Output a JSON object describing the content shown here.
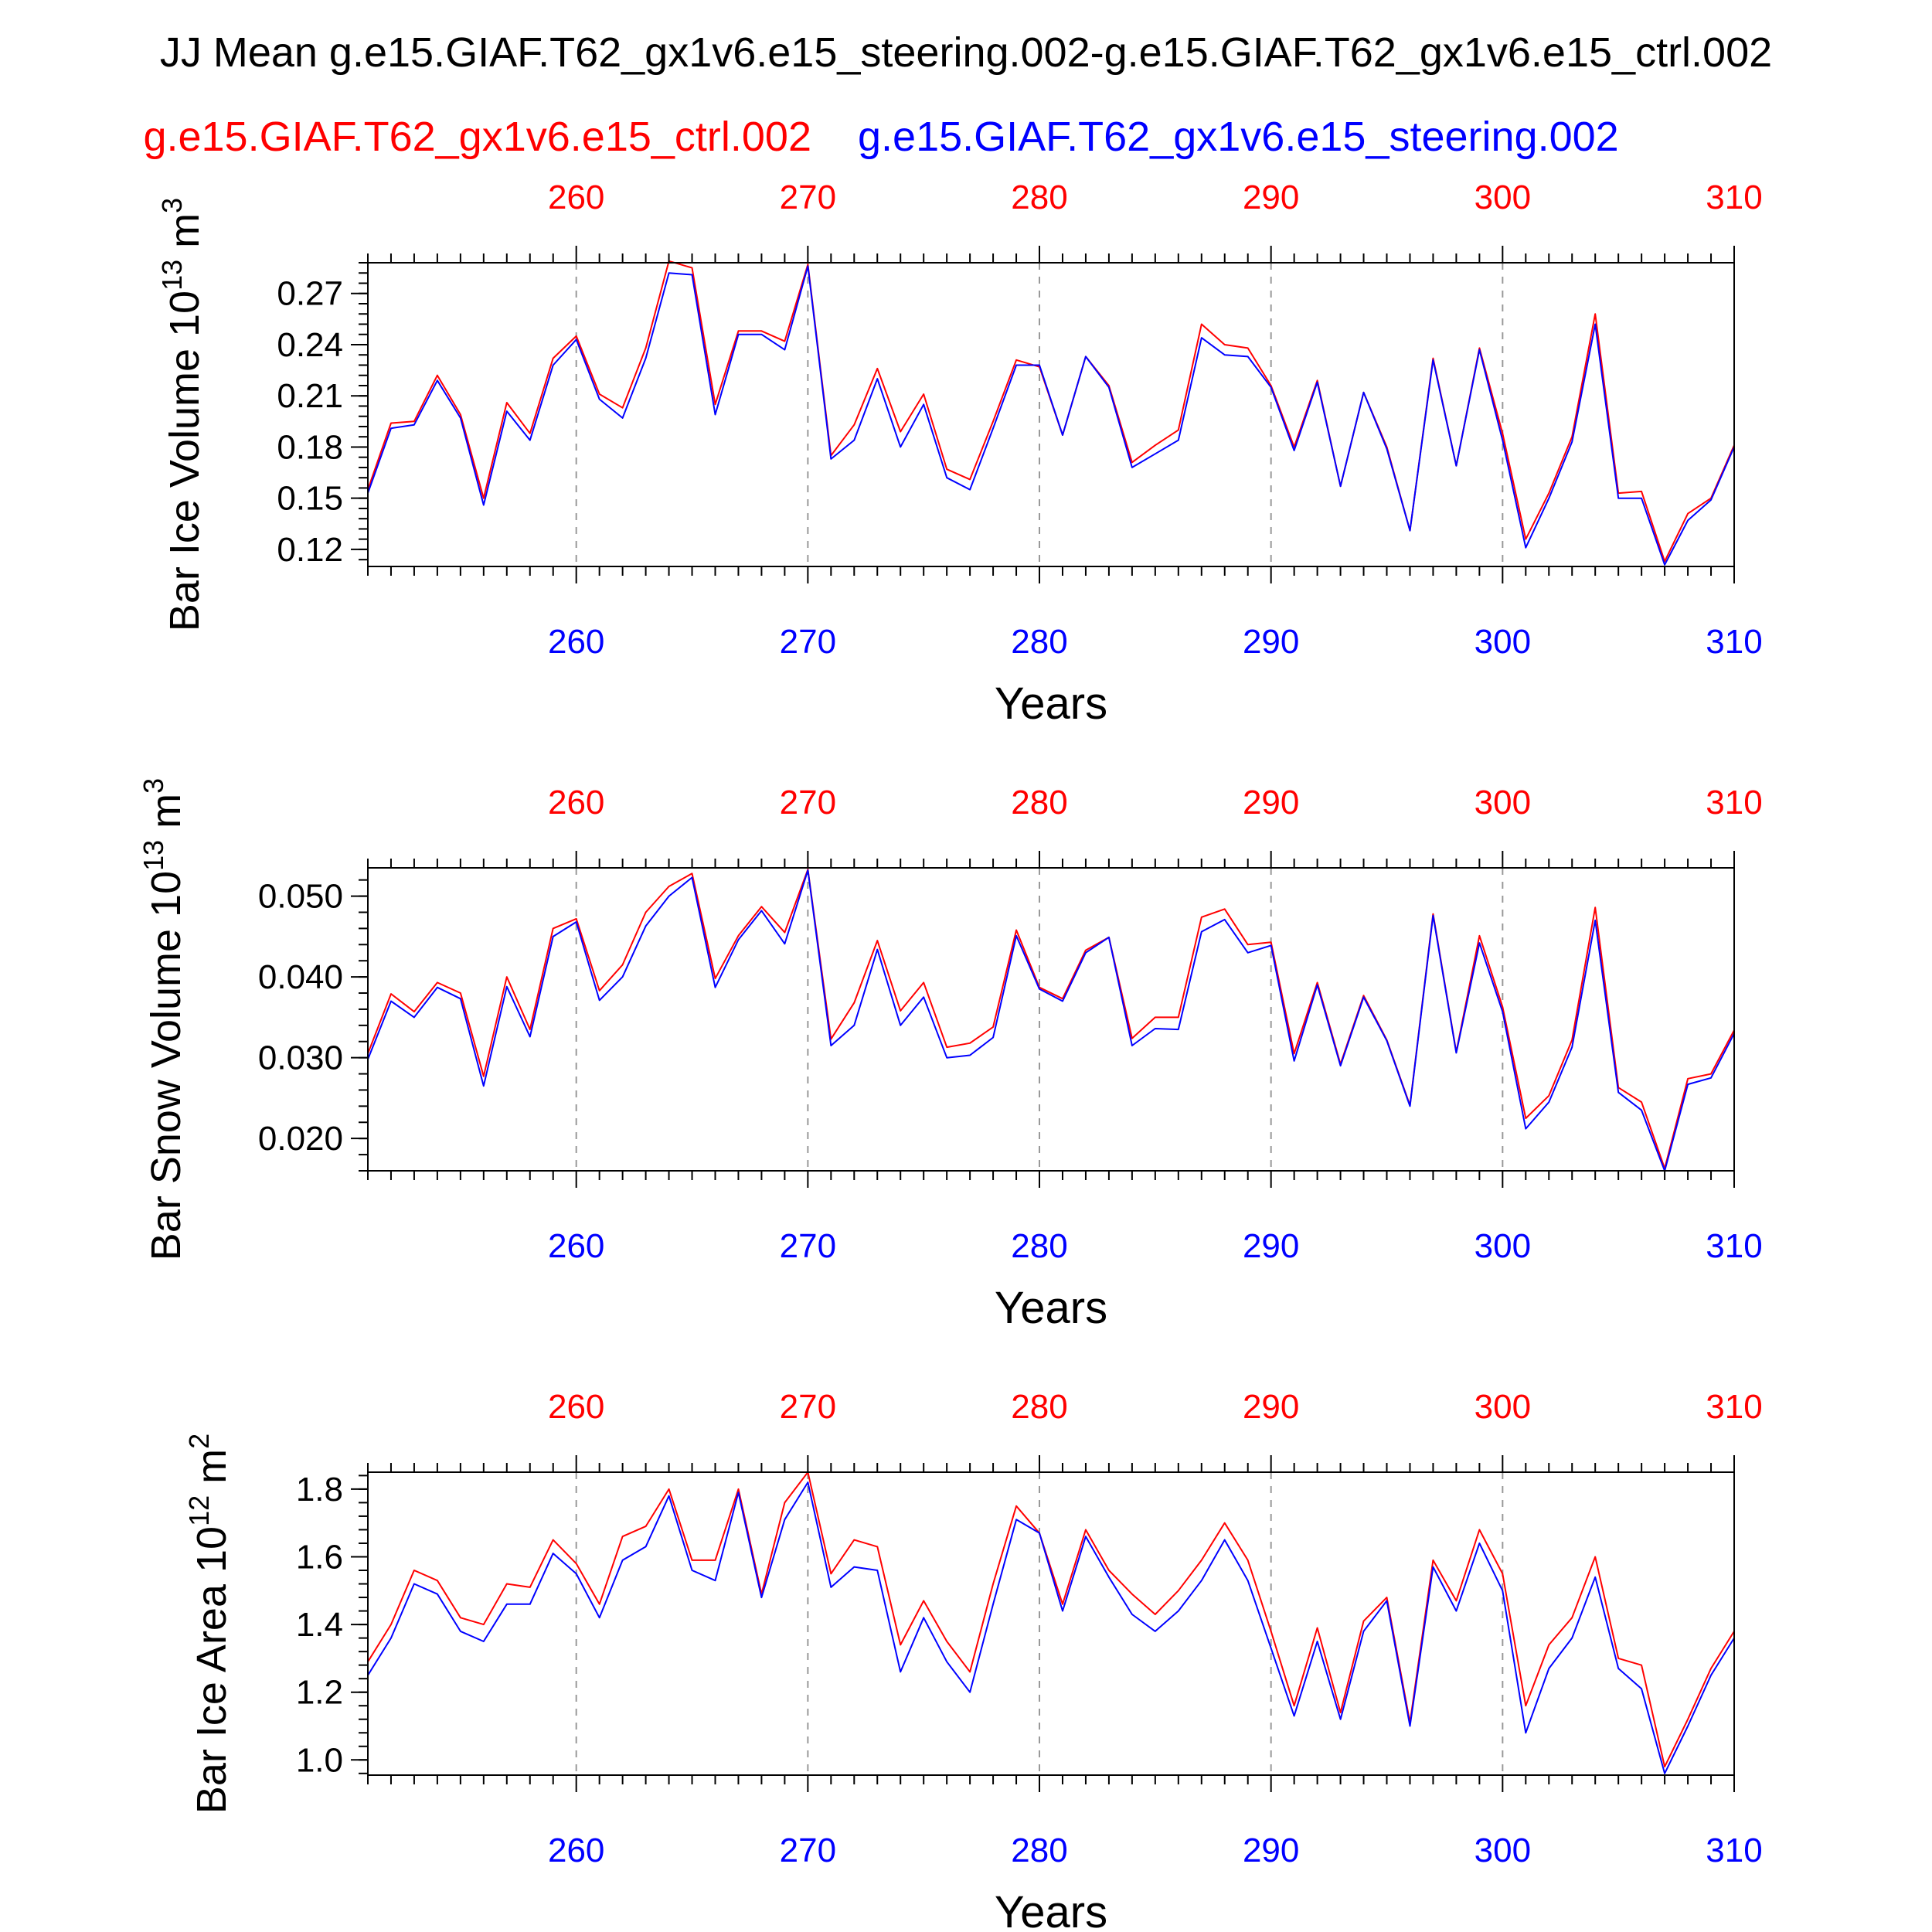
{
  "title": "JJ Mean g.e15.GIAF.T62_gx1v6.e15_steering.002-g.e15.GIAF.T62_gx1v6.e15_ctrl.002",
  "legend": {
    "red": "g.e15.GIAF.T62_gx1v6.e15_ctrl.002",
    "blue": "g.e15.GIAF.T62_gx1v6.e15_steering.002"
  },
  "colors": {
    "red": "#ff0000",
    "blue": "#0000ff",
    "axis": "#000000",
    "grid": "#999999"
  },
  "chart_data": [
    {
      "type": "line",
      "ylabel": "Bar Ice Volume",
      "unit_power": "13",
      "unit_base": "m",
      "unit_exp": "3",
      "xlabel": "Years",
      "xlim": [
        251,
        310
      ],
      "ylim": [
        0.11,
        0.288
      ],
      "x_ticks": [
        260,
        270,
        280,
        290,
        300,
        310
      ],
      "x_ticklabels": [
        "260",
        "270",
        "280",
        "290",
        "300",
        "310"
      ],
      "y_ticks": [
        0.12,
        0.15,
        0.18,
        0.21,
        0.24,
        0.27
      ],
      "y_ticklabels": [
        "0.12",
        "0.15",
        "0.18",
        "0.21",
        "0.24",
        "0.27"
      ],
      "y_minor": 0.006,
      "x_start": 251,
      "series": [
        {
          "name": "g.e15.GIAF.T62_gx1v6.e15_ctrl.002",
          "color": "red",
          "values": [
            0.155,
            0.194,
            0.195,
            0.222,
            0.199,
            0.15,
            0.206,
            0.188,
            0.232,
            0.245,
            0.211,
            0.203,
            0.238,
            0.289,
            0.285,
            0.205,
            0.248,
            0.248,
            0.242,
            0.287,
            0.175,
            0.193,
            0.226,
            0.189,
            0.211,
            0.167,
            0.161,
            0.195,
            0.231,
            0.227,
            0.187,
            0.233,
            0.216,
            0.171,
            0.181,
            0.19,
            0.252,
            0.24,
            0.238,
            0.216,
            0.18,
            0.219,
            0.157,
            0.212,
            0.18,
            0.131,
            0.232,
            0.169,
            0.238,
            0.188,
            0.126,
            0.153,
            0.186,
            0.258,
            0.153,
            0.154,
            0.113,
            0.141,
            0.15,
            0.181
          ]
        },
        {
          "name": "g.e15.GIAF.T62_gx1v6.e15_steering.002",
          "color": "blue",
          "values": [
            0.153,
            0.191,
            0.193,
            0.219,
            0.197,
            0.146,
            0.201,
            0.184,
            0.228,
            0.243,
            0.208,
            0.197,
            0.232,
            0.282,
            0.281,
            0.199,
            0.246,
            0.246,
            0.237,
            0.286,
            0.173,
            0.184,
            0.22,
            0.18,
            0.205,
            0.162,
            0.155,
            0.191,
            0.228,
            0.228,
            0.187,
            0.233,
            0.215,
            0.168,
            0.176,
            0.184,
            0.244,
            0.234,
            0.233,
            0.215,
            0.178,
            0.218,
            0.157,
            0.212,
            0.179,
            0.131,
            0.231,
            0.169,
            0.237,
            0.184,
            0.121,
            0.15,
            0.183,
            0.252,
            0.15,
            0.15,
            0.111,
            0.137,
            0.149,
            0.18
          ]
        }
      ]
    },
    {
      "type": "line",
      "ylabel": "Bar Snow Volume",
      "unit_power": "13",
      "unit_base": "m",
      "unit_exp": "3",
      "xlabel": "Years",
      "xlim": [
        251,
        310
      ],
      "ylim": [
        0.016,
        0.0535
      ],
      "x_ticks": [
        260,
        270,
        280,
        290,
        300,
        310
      ],
      "x_ticklabels": [
        "260",
        "270",
        "280",
        "290",
        "300",
        "310"
      ],
      "y_ticks": [
        0.02,
        0.03,
        0.04,
        0.05
      ],
      "y_ticklabels": [
        "0.020",
        "0.030",
        "0.040",
        "0.050"
      ],
      "y_minor": 0.002,
      "x_start": 251,
      "series": [
        {
          "name": "g.e15.GIAF.T62_gx1v6.e15_ctrl.002",
          "color": "red",
          "values": [
            0.0305,
            0.0379,
            0.0357,
            0.0393,
            0.038,
            0.0277,
            0.04,
            0.0335,
            0.046,
            0.0472,
            0.0383,
            0.0415,
            0.048,
            0.0512,
            0.0528,
            0.0398,
            0.0451,
            0.0487,
            0.0455,
            0.0533,
            0.0323,
            0.0368,
            0.0445,
            0.0358,
            0.0393,
            0.0313,
            0.0318,
            0.0338,
            0.0458,
            0.0387,
            0.0373,
            0.0433,
            0.0449,
            0.0324,
            0.035,
            0.035,
            0.0474,
            0.0484,
            0.044,
            0.0443,
            0.0305,
            0.0393,
            0.0292,
            0.0377,
            0.0322,
            0.0241,
            0.0478,
            0.0307,
            0.0451,
            0.0363,
            0.0225,
            0.0253,
            0.0322,
            0.0486,
            0.0263,
            0.0245,
            0.0163,
            0.0274,
            0.028,
            0.0334
          ]
        },
        {
          "name": "g.e15.GIAF.T62_gx1v6.e15_steering.002",
          "color": "blue",
          "values": [
            0.0298,
            0.037,
            0.035,
            0.0387,
            0.0373,
            0.0265,
            0.0388,
            0.0326,
            0.045,
            0.0468,
            0.0371,
            0.04,
            0.0463,
            0.05,
            0.0523,
            0.0387,
            0.0446,
            0.0482,
            0.0441,
            0.0532,
            0.0315,
            0.034,
            0.0434,
            0.034,
            0.0375,
            0.03,
            0.0303,
            0.0325,
            0.0451,
            0.0385,
            0.037,
            0.043,
            0.0449,
            0.0315,
            0.0336,
            0.0335,
            0.0456,
            0.0471,
            0.043,
            0.0439,
            0.0296,
            0.039,
            0.029,
            0.0375,
            0.0321,
            0.024,
            0.0476,
            0.0306,
            0.0442,
            0.0357,
            0.0212,
            0.0245,
            0.0313,
            0.047,
            0.0257,
            0.0235,
            0.016,
            0.0267,
            0.0275,
            0.033
          ]
        }
      ]
    },
    {
      "type": "line",
      "ylabel": "Bar Ice Area",
      "unit_power": "12",
      "unit_base": "m",
      "unit_exp": "2",
      "xlabel": "Years",
      "xlim": [
        251,
        310
      ],
      "ylim": [
        0.955,
        1.85
      ],
      "x_ticks": [
        260,
        270,
        280,
        290,
        300,
        310
      ],
      "x_ticklabels": [
        "260",
        "270",
        "280",
        "290",
        "300",
        "310"
      ],
      "y_ticks": [
        1.0,
        1.2,
        1.4,
        1.6,
        1.8
      ],
      "y_ticklabels": [
        "1.0",
        "1.2",
        "1.4",
        "1.6",
        "1.8"
      ],
      "y_minor": 0.04,
      "x_start": 251,
      "series": [
        {
          "name": "g.e15.GIAF.T62_gx1v6.e15_ctrl.002",
          "color": "red",
          "values": [
            1.29,
            1.4,
            1.56,
            1.53,
            1.42,
            1.4,
            1.52,
            1.51,
            1.65,
            1.58,
            1.46,
            1.66,
            1.69,
            1.8,
            1.59,
            1.59,
            1.8,
            1.49,
            1.76,
            1.85,
            1.55,
            1.65,
            1.63,
            1.34,
            1.47,
            1.35,
            1.26,
            1.52,
            1.75,
            1.67,
            1.46,
            1.68,
            1.56,
            1.49,
            1.43,
            1.5,
            1.59,
            1.7,
            1.59,
            1.38,
            1.16,
            1.39,
            1.14,
            1.41,
            1.48,
            1.11,
            1.59,
            1.47,
            1.68,
            1.55,
            1.16,
            1.34,
            1.42,
            1.6,
            1.3,
            1.28,
            0.98,
            1.12,
            1.27,
            1.38
          ]
        },
        {
          "name": "g.e15.GIAF.T62_gx1v6.e15_steering.002",
          "color": "blue",
          "values": [
            1.25,
            1.36,
            1.52,
            1.49,
            1.38,
            1.35,
            1.46,
            1.46,
            1.61,
            1.55,
            1.42,
            1.59,
            1.63,
            1.78,
            1.56,
            1.53,
            1.79,
            1.48,
            1.71,
            1.82,
            1.51,
            1.57,
            1.56,
            1.26,
            1.42,
            1.29,
            1.2,
            1.46,
            1.71,
            1.67,
            1.44,
            1.66,
            1.54,
            1.43,
            1.38,
            1.44,
            1.53,
            1.65,
            1.53,
            1.33,
            1.13,
            1.35,
            1.12,
            1.38,
            1.47,
            1.1,
            1.57,
            1.44,
            1.64,
            1.5,
            1.08,
            1.27,
            1.36,
            1.54,
            1.27,
            1.21,
            0.96,
            1.1,
            1.25,
            1.36
          ]
        }
      ]
    }
  ]
}
